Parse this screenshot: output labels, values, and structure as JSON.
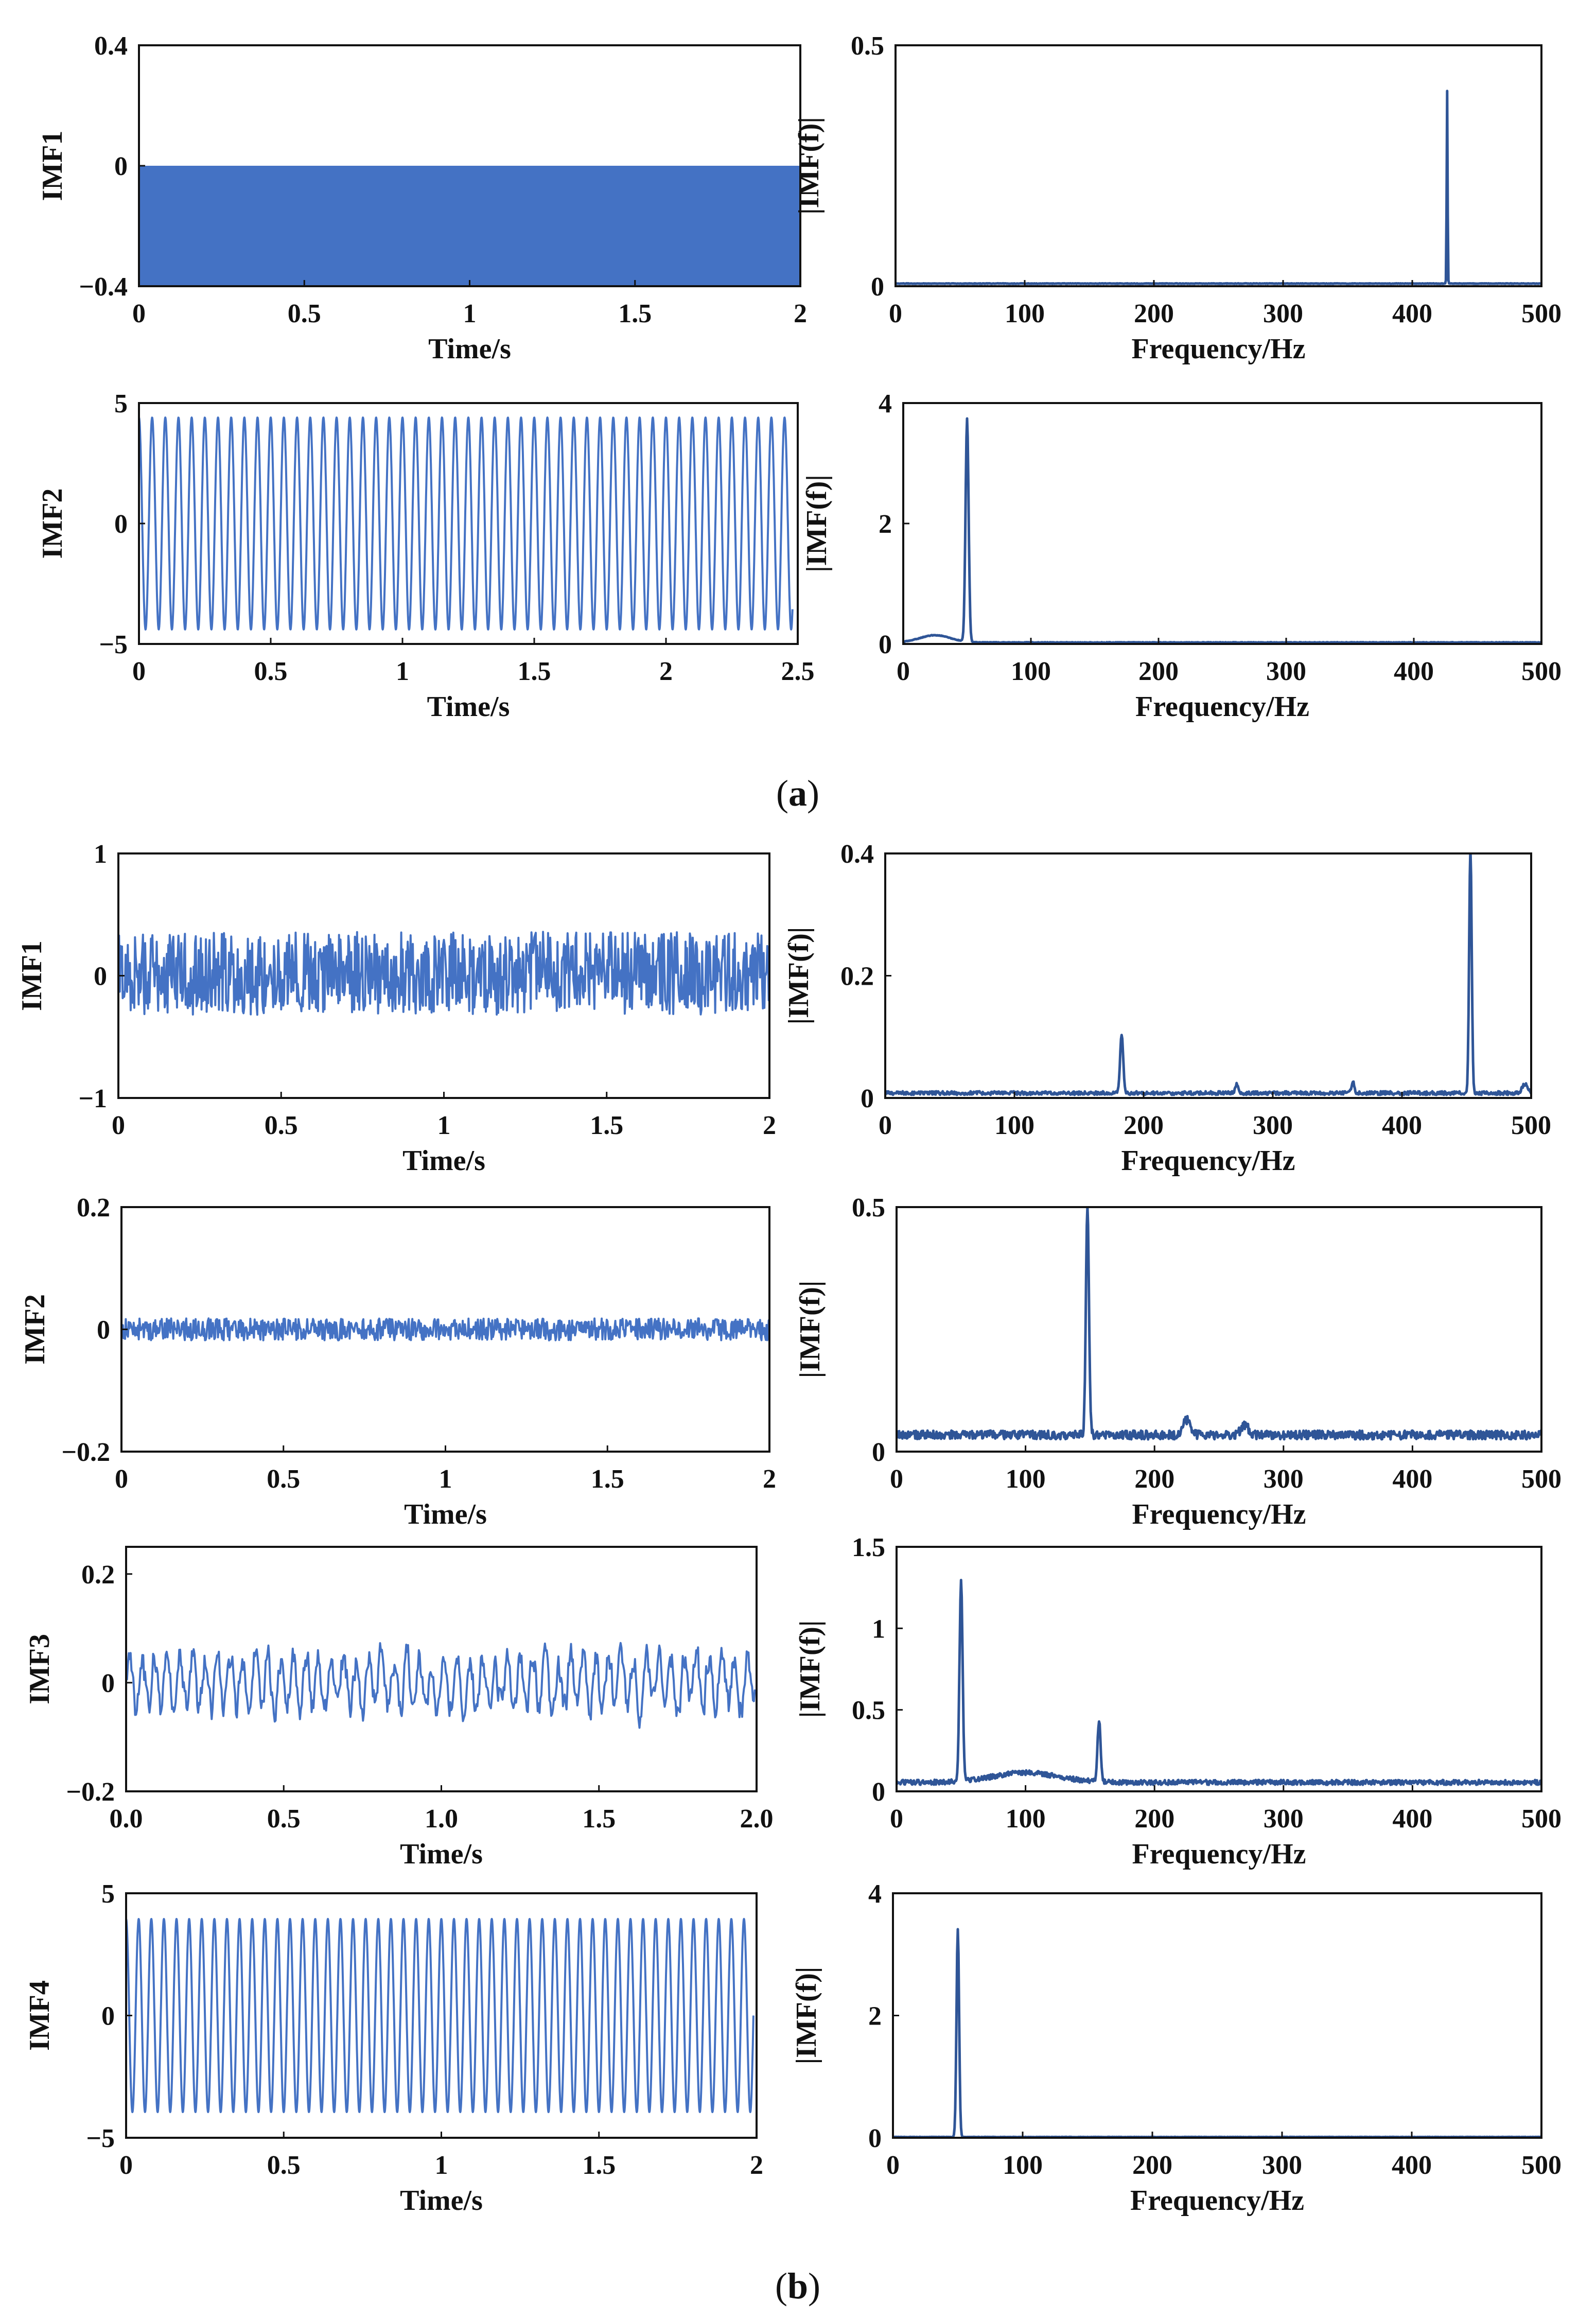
{
  "captions": [
    {
      "text": "a"
    },
    {
      "text": "b"
    }
  ],
  "colors": {
    "signal": "#4472C4",
    "spectrum": "#2F5597",
    "axis": "#111111"
  },
  "chart_data": [
    {
      "id": "a-imf1-time",
      "type": "line",
      "ylabel": "IMF1",
      "xlabel": "Time/s",
      "xlim": [
        0,
        2
      ],
      "ylim": [
        -0.4,
        0.4
      ],
      "xticks": [
        "0",
        "0.5",
        "1",
        "1.5",
        "2"
      ],
      "xtick_values": [
        0,
        0.5,
        1,
        1.5,
        2
      ],
      "yticks": [
        "−0.4",
        "0",
        "0.4"
      ],
      "ytick_values": [
        -0.4,
        0,
        0.4
      ],
      "series": [
        {
          "name": "IMF1",
          "kind": "filled_band",
          "upper": 0,
          "lower": -0.4
        }
      ]
    },
    {
      "id": "a-imf1-spec",
      "type": "line",
      "ylabel": "|IMF(f)|",
      "xlabel": "Frequency/Hz",
      "xlim": [
        0,
        500
      ],
      "ylim": [
        0,
        0.5
      ],
      "xticks": [
        "0",
        "100",
        "200",
        "300",
        "400",
        "500"
      ],
      "xtick_values": [
        0,
        100,
        200,
        300,
        400,
        500
      ],
      "yticks": [
        "0",
        "0.5"
      ],
      "ytick_values": [
        0,
        0.5
      ],
      "series": [
        {
          "name": "spectrum",
          "kind": "spectrum",
          "baseline": 0.005,
          "noise": 0.001,
          "peaks": [
            {
              "f": 427,
              "a": 0.4,
              "w": 0.35
            }
          ]
        }
      ]
    },
    {
      "id": "a-imf2-time",
      "type": "line",
      "ylabel": "IMF2",
      "xlabel": "Time/s",
      "xlim": [
        0,
        2.5
      ],
      "ylim": [
        -5,
        5
      ],
      "xticks": [
        "0",
        "0.5",
        "1",
        "1.5",
        "2",
        "2.5"
      ],
      "xtick_values": [
        0,
        0.5,
        1,
        1.5,
        2,
        2.5
      ],
      "yticks": [
        "−5",
        "0",
        "5"
      ],
      "ytick_values": [
        -5,
        0,
        5
      ],
      "series": [
        {
          "name": "IMF2",
          "kind": "sine",
          "amplitude": 4.4,
          "frequency_hz": 20,
          "x_end": 2.48
        }
      ]
    },
    {
      "id": "a-imf2-spec",
      "type": "line",
      "ylabel": "|IMF(f)|",
      "xlabel": "Frequency/Hz",
      "xlim": [
        0,
        500
      ],
      "ylim": [
        0,
        4
      ],
      "xticks": [
        "0",
        "100",
        "200",
        "300",
        "400",
        "500"
      ],
      "xtick_values": [
        0,
        100,
        200,
        300,
        400,
        500
      ],
      "yticks": [
        "0",
        "2",
        "4"
      ],
      "ytick_values": [
        0,
        2,
        4
      ],
      "series": [
        {
          "name": "spectrum",
          "kind": "spectrum",
          "baseline": 0.02,
          "noise": 0.01,
          "peaks": [
            {
              "f": 50,
              "a": 3.7,
              "w": 1.2
            },
            {
              "f": 25,
              "a": 0.12,
              "w": 12
            }
          ]
        }
      ]
    },
    {
      "id": "b-imf1-time",
      "type": "line",
      "ylabel": "IMF1",
      "xlabel": "Time/s",
      "xlim": [
        0,
        2
      ],
      "ylim": [
        -1,
        1
      ],
      "xticks": [
        "0",
        "0.5",
        "1",
        "1.5",
        "2"
      ],
      "xtick_values": [
        0,
        0.5,
        1,
        1.5,
        2
      ],
      "yticks": [
        "−1",
        "0",
        "1"
      ],
      "ytick_values": [
        -1,
        0,
        1
      ],
      "series": [
        {
          "name": "IMF1",
          "kind": "noise",
          "amplitude": 0.34,
          "mean": 0.02,
          "points": 900
        }
      ]
    },
    {
      "id": "b-imf1-spec",
      "type": "line",
      "ylabel": "|IMF(f)|",
      "xlabel": "Frequency/Hz",
      "xlim": [
        0,
        500
      ],
      "ylim": [
        0,
        0.4
      ],
      "xticks": [
        "0",
        "100",
        "200",
        "300",
        "400",
        "500"
      ],
      "xtick_values": [
        0,
        100,
        200,
        300,
        400,
        500
      ],
      "yticks": [
        "0",
        "0.2",
        "0.4"
      ],
      "ytick_values": [
        0,
        0.2,
        0.4
      ],
      "series": [
        {
          "name": "spectrum",
          "kind": "spectrum",
          "baseline": 0.005,
          "noise": 0.006,
          "peaks": [
            {
              "f": 183,
              "a": 0.095,
              "w": 1.2
            },
            {
              "f": 453,
              "a": 0.4,
              "w": 1.0
            },
            {
              "f": 272,
              "a": 0.015,
              "w": 1
            },
            {
              "f": 362,
              "a": 0.02,
              "w": 1
            },
            {
              "f": 495,
              "a": 0.015,
              "w": 2
            }
          ]
        }
      ]
    },
    {
      "id": "b-imf2-time",
      "type": "line",
      "ylabel": "IMF2",
      "xlabel": "Time/s",
      "xlim": [
        0,
        2
      ],
      "ylim": [
        -0.2,
        0.2
      ],
      "xticks": [
        "0",
        "0.5",
        "1",
        "1.5",
        "2"
      ],
      "xtick_values": [
        0,
        0.5,
        1,
        1.5,
        2
      ],
      "yticks": [
        "−0.2",
        "0",
        "0.2"
      ],
      "ytick_values": [
        -0.2,
        0,
        0.2
      ],
      "series": [
        {
          "name": "IMF2",
          "kind": "noise",
          "amplitude": 0.018,
          "mean": 0.0,
          "points": 900
        }
      ]
    },
    {
      "id": "b-imf2-spec",
      "type": "line",
      "ylabel": "|IMF(f)|",
      "xlabel": "Frequency/Hz",
      "xlim": [
        0,
        500
      ],
      "ylim": [
        0,
        0.5
      ],
      "xticks": [
        "0",
        "100",
        "200",
        "300",
        "400",
        "500"
      ],
      "xtick_values": [
        0,
        100,
        200,
        300,
        400,
        500
      ],
      "yticks": [
        "0",
        "0.5"
      ],
      "ytick_values": [
        0,
        0.5
      ],
      "series": [
        {
          "name": "spectrum",
          "kind": "spectrum",
          "baseline": 0.025,
          "noise": 0.018,
          "peaks": [
            {
              "f": 148,
              "a": 0.47,
              "w": 1.2
            },
            {
              "f": 225,
              "a": 0.03,
              "w": 3
            },
            {
              "f": 270,
              "a": 0.02,
              "w": 3
            }
          ]
        }
      ]
    },
    {
      "id": "b-imf3-time",
      "type": "line",
      "ylabel": "IMF3",
      "xlabel": "Time/s",
      "xlim": [
        0,
        2
      ],
      "ylim": [
        -0.2,
        0.25
      ],
      "xticks": [
        "0.0",
        "0.5",
        "1.0",
        "1.5",
        "2.0"
      ],
      "xtick_values": [
        0,
        0.5,
        1,
        1.5,
        2
      ],
      "yticks": [
        "−0.2",
        "0",
        "0.2"
      ],
      "ytick_values": [
        -0.2,
        0,
        0.2
      ],
      "series": [
        {
          "name": "IMF3",
          "kind": "noise",
          "amplitude": 0.075,
          "mean": 0.0,
          "points": 700,
          "smooth": true
        }
      ]
    },
    {
      "id": "b-imf3-spec",
      "type": "line",
      "ylabel": "|IMF(f)|",
      "xlabel": "Frequency/Hz",
      "xlim": [
        0,
        500
      ],
      "ylim": [
        0,
        1.5
      ],
      "xticks": [
        "0",
        "100",
        "200",
        "300",
        "400",
        "500"
      ],
      "xtick_values": [
        0,
        100,
        200,
        300,
        400,
        500
      ],
      "yticks": [
        "0",
        "0.5",
        "1",
        "1.5"
      ],
      "ytick_values": [
        0,
        0.5,
        1,
        1.5
      ],
      "series": [
        {
          "name": "spectrum",
          "kind": "spectrum",
          "baseline": 0.04,
          "noise": 0.03,
          "peaks": [
            {
              "f": 50,
              "a": 1.22,
              "w": 1.2
            },
            {
              "f": 157,
              "a": 0.38,
              "w": 1.2
            },
            {
              "f": 100,
              "a": 0.06,
              "w": 25
            }
          ]
        }
      ]
    },
    {
      "id": "b-imf4-time",
      "type": "line",
      "ylabel": "IMF4",
      "xlabel": "Time/s",
      "xlim": [
        0,
        2
      ],
      "ylim": [
        -5,
        5
      ],
      "xticks": [
        "0",
        "0.5",
        "1",
        "1.5",
        "2"
      ],
      "xtick_values": [
        0,
        0.5,
        1,
        1.5,
        2
      ],
      "yticks": [
        "−5",
        "0",
        "5"
      ],
      "ytick_values": [
        -5,
        0,
        5
      ],
      "series": [
        {
          "name": "IMF4",
          "kind": "sine",
          "amplitude": 3.95,
          "frequency_hz": 25,
          "x_end": 1.99
        }
      ]
    },
    {
      "id": "b-imf4-spec",
      "type": "line",
      "ylabel": "|IMF(f)|",
      "xlabel": "Frequency/Hz",
      "xlim": [
        0,
        500
      ],
      "ylim": [
        0,
        4
      ],
      "xticks": [
        "0",
        "100",
        "200",
        "300",
        "400",
        "500"
      ],
      "xtick_values": [
        0,
        100,
        200,
        300,
        400,
        500
      ],
      "yticks": [
        "0",
        "2",
        "4"
      ],
      "ytick_values": [
        0,
        2,
        4
      ],
      "series": [
        {
          "name": "spectrum",
          "kind": "spectrum",
          "baseline": 0.01,
          "noise": 0.005,
          "peaks": [
            {
              "f": 50,
              "a": 3.4,
              "w": 1.0
            }
          ]
        }
      ]
    }
  ]
}
